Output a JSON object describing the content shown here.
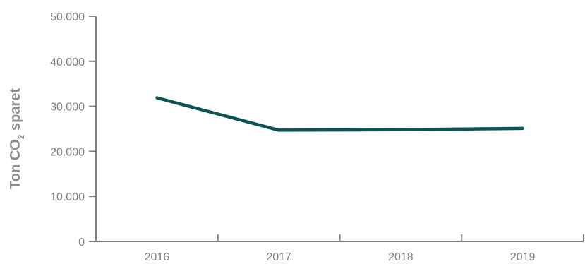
{
  "chart_data": {
    "type": "line",
    "title": "",
    "xlabel": "",
    "ylabel": {
      "prefix": "Ton CO",
      "subscript": "2",
      "suffix": " sparet"
    },
    "categories": [
      "2016",
      "2017",
      "2018",
      "2019"
    ],
    "series": [
      {
        "values": [
          31900,
          24700,
          24800,
          25100
        ]
      }
    ],
    "ylim": [
      0,
      50000
    ],
    "yticks": [
      0,
      10000,
      20000,
      30000,
      40000,
      50000
    ],
    "ytick_labels": [
      "0",
      "10.000",
      "20.000",
      "30.000",
      "40.000",
      "50.000"
    ],
    "grid": false,
    "legend": "none",
    "colors": {
      "line": "#0d5257",
      "axis": "#7f7f7f",
      "tick_text": "#7f7f7f",
      "axis_title": "#8c8c8c"
    }
  }
}
